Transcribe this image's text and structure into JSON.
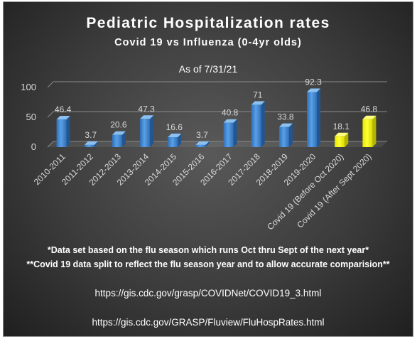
{
  "chart_data": {
    "type": "bar",
    "title": "Pediatric Hospitalization rates",
    "subtitle": "Covid 19 vs Influenza (0-4yr olds)",
    "as_of": "As of 7/31/21",
    "categories": [
      "2010-2011",
      "2011-2012",
      "2012-2013",
      "2013-2014",
      "2014-2015",
      "2015-2016",
      "2016-2017",
      "2017-2018",
      "2018-2019",
      "2019-2020",
      "Covid 19 (Before Oct 2020)",
      "Covid 19 (After Sept 2020)"
    ],
    "values": [
      46.4,
      3.7,
      20.6,
      47.3,
      16.6,
      3.7,
      40.8,
      71,
      33.8,
      92.3,
      18.1,
      46.8
    ],
    "value_labels": [
      "46.4",
      "3.7",
      "20.6",
      "47.3",
      "16.6",
      "3.7",
      "40.8",
      "71",
      "33.8",
      "92.3",
      "18.1",
      "46.8"
    ],
    "bar_colors": [
      "#4a90d9",
      "#4a90d9",
      "#4a90d9",
      "#4a90d9",
      "#4a90d9",
      "#4a90d9",
      "#4a90d9",
      "#4a90d9",
      "#4a90d9",
      "#4a90d9",
      "#ffff00",
      "#ffff00"
    ],
    "y_ticks": [
      0,
      50,
      100
    ],
    "ylim": [
      0,
      100
    ],
    "grid": true,
    "legend": "none"
  },
  "notes": [
    "*Data set based on the flu season which runs Oct thru Sept of the next year*",
    "**Covid 19 data split to reflect the flu season year and to allow accurate comparision**"
  ],
  "links": [
    "https://gis.cdc.gov/grasp/COVIDNet/COVID19_3.html",
    "https://gis.cdc.gov/GRASP/Fluview/FluHospRates.html"
  ],
  "colors": {
    "flu_bar": "#4a90d9",
    "covid_bar": "#ffff00",
    "background": "#3c3c3c",
    "text": "#ffffff"
  }
}
